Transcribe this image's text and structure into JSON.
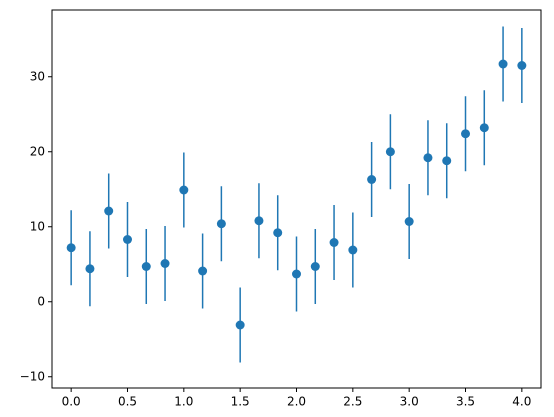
{
  "chart_data": {
    "type": "errorbar",
    "color": "#1f77b4",
    "x": [
      0,
      0.1667,
      0.3333,
      0.5,
      0.6667,
      0.8333,
      1,
      1.1667,
      1.3333,
      1.5,
      1.6667,
      1.8333,
      2,
      2.1667,
      2.3333,
      2.5,
      2.6667,
      2.8333,
      3,
      3.1667,
      3.3333,
      3.5,
      3.6667,
      3.8333,
      4
    ],
    "values": [
      7.2,
      4.4,
      12.1,
      8.3,
      4.7,
      5.1,
      14.9,
      4.1,
      10.4,
      -3.1,
      10.8,
      9.2,
      3.7,
      4.7,
      7.9,
      6.9,
      16.3,
      20.0,
      10.7,
      19.2,
      18.8,
      22.4,
      23.2,
      31.7,
      31.5
    ],
    "errors": [
      5,
      5,
      5,
      5,
      5,
      5,
      5,
      5,
      5,
      5,
      5,
      5,
      5,
      5,
      5,
      5,
      5,
      5,
      5,
      5,
      5,
      5,
      5,
      5,
      5
    ],
    "xlim": [
      -0.17,
      4.17
    ],
    "ylim": [
      -11.5,
      38.9
    ],
    "xticks": [
      {
        "value": 0,
        "label": "0.0"
      },
      {
        "value": 0.5,
        "label": "0.5"
      },
      {
        "value": 1,
        "label": "1.0"
      },
      {
        "value": 1.5,
        "label": "1.5"
      },
      {
        "value": 2,
        "label": "2.0"
      },
      {
        "value": 2.5,
        "label": "2.5"
      },
      {
        "value": 3,
        "label": "3.0"
      },
      {
        "value": 3.5,
        "label": "3.5"
      },
      {
        "value": 4,
        "label": "4.0"
      }
    ],
    "yticks": [
      {
        "value": -10,
        "label": "−10"
      },
      0,
      10,
      20,
      30
    ]
  }
}
